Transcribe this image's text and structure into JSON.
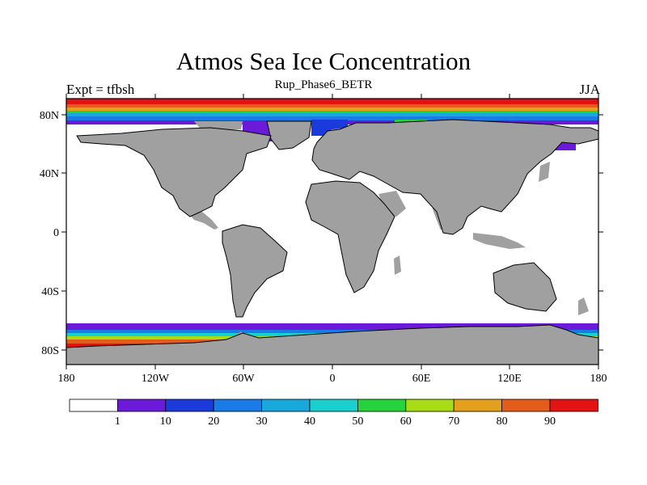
{
  "title": "Atmos Sea Ice Concentration",
  "subtitle": "Rup_Phase6_BETR",
  "left_label": "Expt = tfbsh",
  "right_label": "JJA",
  "colors": {
    "land": "#a0a0a0",
    "ocean": "#ffffff",
    "levels": [
      "#ffffff",
      "#6a1ad8",
      "#1a3adc",
      "#1a7ae6",
      "#19a8dc",
      "#19cfcf",
      "#27d33d",
      "#a8dc14",
      "#e3a01c",
      "#e35c1c",
      "#e31313"
    ]
  },
  "map": {
    "x_ticks": [
      "180",
      "120W",
      "60W",
      "0",
      "60E",
      "120E",
      "180"
    ],
    "y_ticks": [
      "80N",
      "40N",
      "0",
      "40S",
      "80S"
    ]
  },
  "colorbar": {
    "labels": [
      "1",
      "10",
      "20",
      "30",
      "40",
      "50",
      "60",
      "70",
      "80",
      "90"
    ]
  }
}
